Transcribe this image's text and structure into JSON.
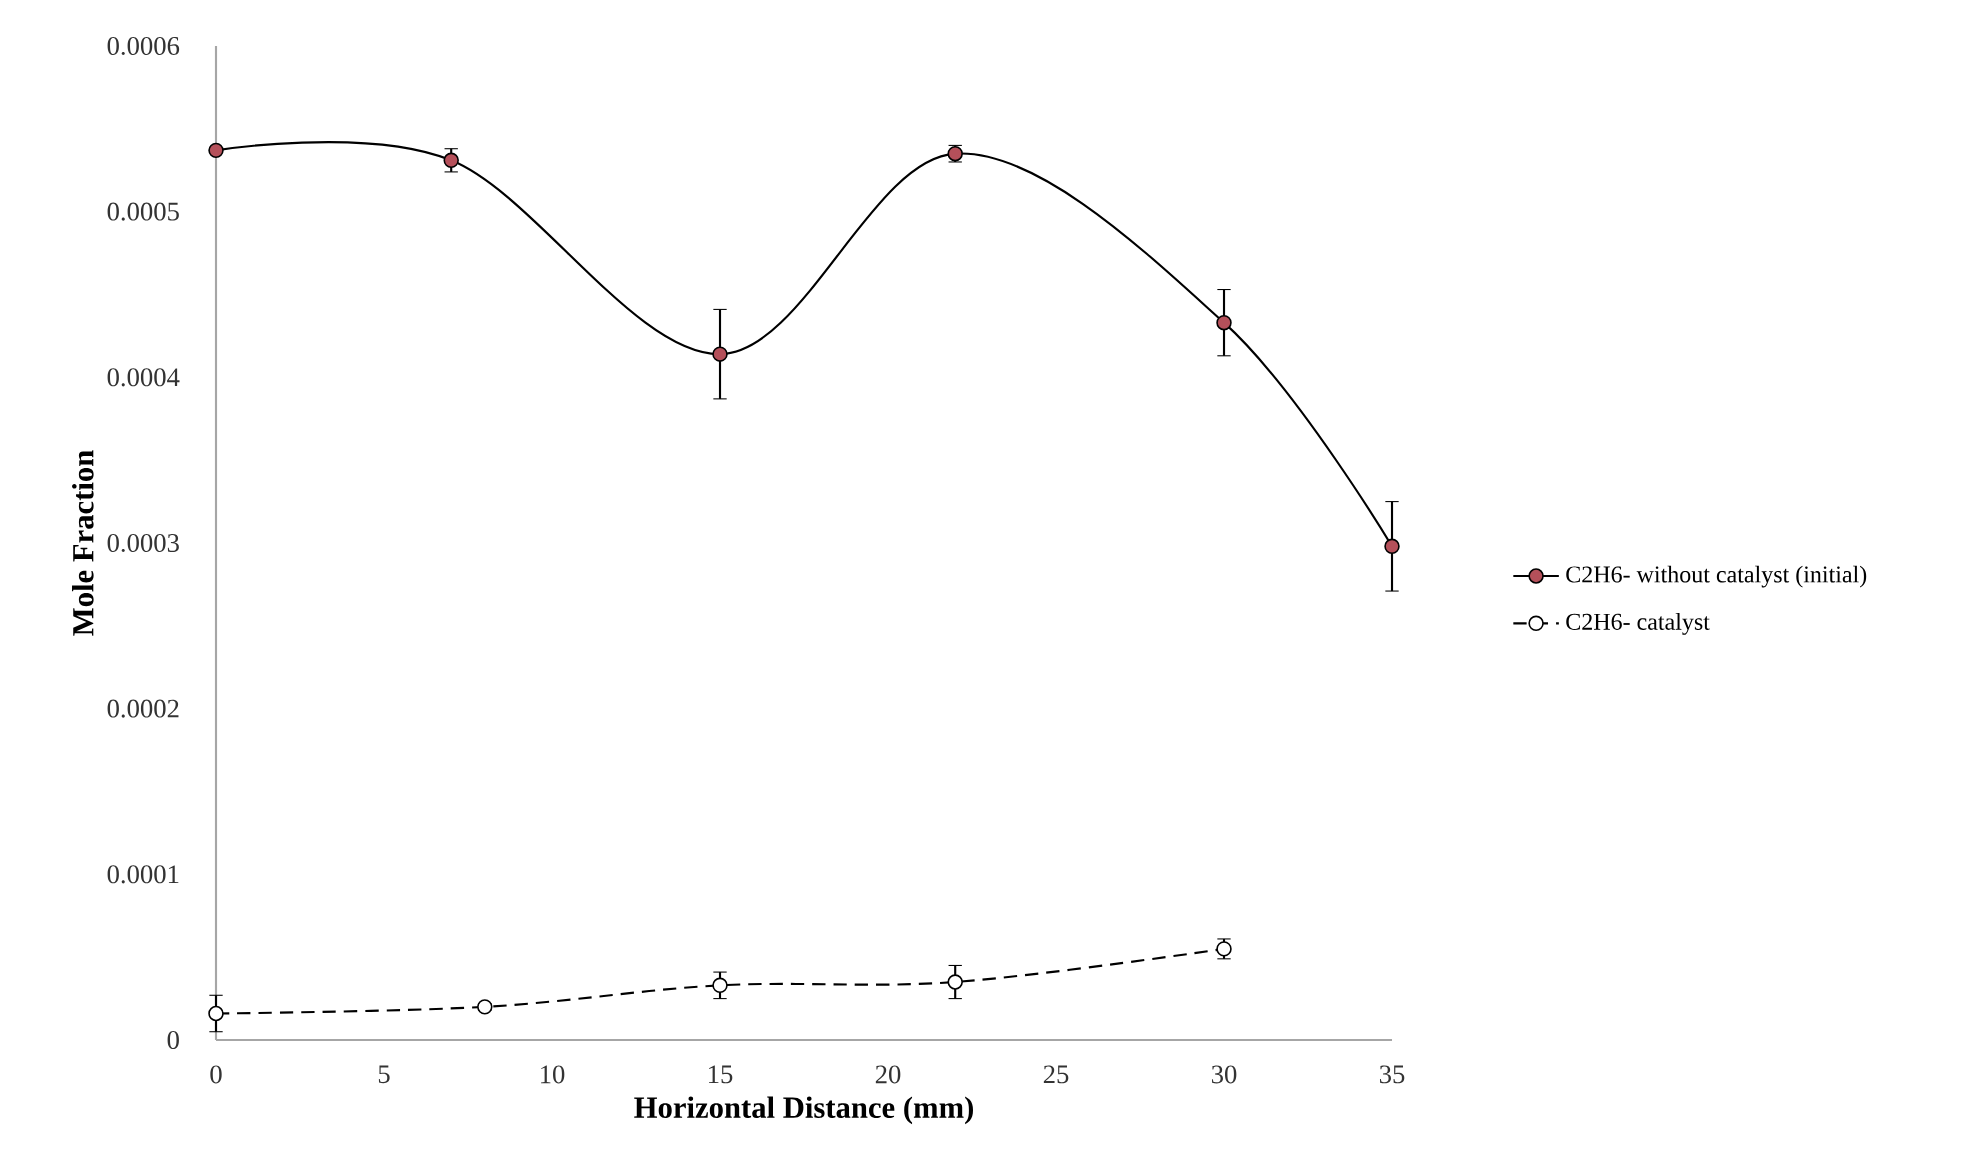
{
  "chart_data": {
    "type": "line",
    "xlabel": "Horizontal Distance (mm)",
    "ylabel": "Mole Fraction",
    "series": [
      {
        "name": "C2H6- without catalyst (initial)",
        "color": "#b5505a",
        "line_style": "solid",
        "x": [
          0,
          7,
          15,
          22,
          30,
          35
        ],
        "values": [
          0.000537,
          0.000531,
          0.000414,
          0.000535,
          0.000433,
          0.000298
        ],
        "errors": [
          null,
          7e-06,
          2.7e-05,
          5e-06,
          2e-05,
          2.7e-05
        ]
      },
      {
        "name": "C2H6- catalyst",
        "color": "#ffffff",
        "line_style": "dashed",
        "x": [
          0,
          8,
          15,
          22,
          30
        ],
        "values": [
          1.6e-05,
          2e-05,
          3.3e-05,
          3.5e-05,
          5.5e-05
        ],
        "errors": [
          1.1e-05,
          2e-06,
          8e-06,
          1e-05,
          6e-06
        ]
      }
    ],
    "xlim": [
      0,
      35
    ],
    "ylim": [
      0,
      0.0006
    ],
    "xticks": [
      0,
      5,
      10,
      15,
      20,
      25,
      30,
      35
    ],
    "yticks": [
      0,
      0.0001,
      0.0002,
      0.0003,
      0.0004,
      0.0005,
      0.0006
    ],
    "grid": false,
    "legend": "right",
    "marker": "circle"
  }
}
